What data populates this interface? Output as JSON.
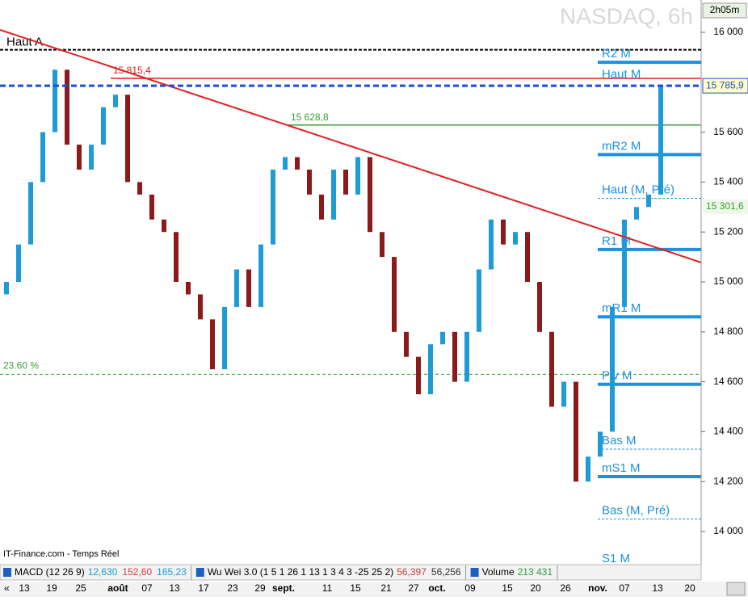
{
  "chart_data": {
    "type": "candlestick",
    "title": "NASDAQ, 6h",
    "timer": "2h05m",
    "ylim": [
      13830,
      16090
    ],
    "yticks": [
      {
        "value": 16000,
        "label": "16 000"
      },
      {
        "value": 15600,
        "label": "15 600"
      },
      {
        "value": 15400,
        "label": "15 400"
      },
      {
        "value": 15200,
        "label": "15 200"
      },
      {
        "value": 15000,
        "label": "15 000"
      },
      {
        "value": 14800,
        "label": "14 800"
      },
      {
        "value": 14600,
        "label": "14 600"
      },
      {
        "value": 14400,
        "label": "14 400"
      },
      {
        "value": 14200,
        "label": "14 200"
      },
      {
        "value": 14000,
        "label": "14 000"
      }
    ],
    "x_labels": [
      "13",
      "19",
      "25",
      "août",
      "07",
      "13",
      "17",
      "23",
      "29",
      "sept.",
      "11",
      "15",
      "21",
      "27",
      "oct.",
      "09",
      "15",
      "20",
      "26",
      "nov.",
      "07",
      "13",
      "20"
    ],
    "up_color": "#1e9ad6",
    "down_color": "#8b1a1a",
    "open": [
      14950,
      15000,
      15150,
      15400,
      15600,
      15850,
      15550,
      15450,
      15550,
      15700,
      15750,
      15400,
      15350,
      15250,
      15200,
      15000,
      14950,
      14850,
      14650,
      14900,
      15050,
      14900,
      15150,
      15450,
      15500,
      15450,
      15350,
      15250,
      15450,
      15350,
      15500,
      15200,
      15100,
      14800,
      14700,
      14550,
      14750,
      14800,
      14600,
      14800,
      15050,
      15250,
      15150,
      15200,
      15000,
      14800,
      14500,
      14600,
      14200,
      14300,
      14400,
      14900,
      15250,
      15300,
      15350
    ],
    "close": [
      15000,
      15150,
      15400,
      15600,
      15850,
      15550,
      15450,
      15550,
      15700,
      15750,
      15400,
      15350,
      15250,
      15200,
      15000,
      14950,
      14850,
      14650,
      14900,
      15050,
      14900,
      15150,
      15450,
      15500,
      15450,
      15350,
      15250,
      15450,
      15350,
      15500,
      15200,
      15100,
      14800,
      14700,
      14550,
      14750,
      14800,
      14600,
      14800,
      15050,
      15250,
      15150,
      15200,
      15000,
      14800,
      14500,
      14600,
      14200,
      14300,
      14400,
      14900,
      15250,
      15300,
      15350,
      15785.9
    ],
    "levels": [
      {
        "label": "R2 M",
        "value": 15880
      },
      {
        "label": "mR2 M",
        "value": 15510
      },
      {
        "label": "R1 M",
        "value": 15130
      },
      {
        "label": "mR1 M",
        "value": 14860
      },
      {
        "label": "Piv M",
        "value": 14590
      },
      {
        "label": "mS1 M",
        "value": 14220
      }
    ],
    "dashed_levels": [
      {
        "label": "Haut (M, Pré)",
        "value": 15335
      },
      {
        "label": "Bas M",
        "value": 14330
      },
      {
        "label": "Bas (M, Pré)",
        "value": 14050
      }
    ],
    "text_levels": [
      {
        "label": "Haut M",
        "value": 15830
      },
      {
        "label": "S1 M",
        "value": 13890
      }
    ],
    "year_high": {
      "label": "Haut A",
      "value": 15930
    },
    "last_price": {
      "value": 15785.9,
      "label": "15 785,9"
    },
    "pre_high_tag": {
      "value": 15301.6,
      "label": "15 301,6"
    },
    "red_level": {
      "value": 15815.4,
      "label": "15 815,4"
    },
    "green_level": {
      "value": 15628.8,
      "label": "15 628,8"
    },
    "fib_level": {
      "value": 14630,
      "label": "23.60 %"
    },
    "trendline": [
      16010,
      15078
    ],
    "source": "IT-Finance.com - Temps Réel",
    "indicators": [
      {
        "name": "MACD (12 26 9)",
        "values": [
          "12,630",
          "152,60",
          "165,23"
        ],
        "colors": [
          "#1e9ad6",
          "#d04040",
          "#1e9ad6"
        ]
      },
      {
        "name": "Wu Wei 3.0 (1 5 1 26 1 13 1 3 4 3 -25 25 2)",
        "values": [
          "56,397",
          "56,256"
        ],
        "colors": [
          "#d04040",
          "#333"
        ]
      },
      {
        "name": "Volume",
        "values": [
          "213 431"
        ],
        "colors": [
          "#2aa040"
        ]
      }
    ]
  }
}
